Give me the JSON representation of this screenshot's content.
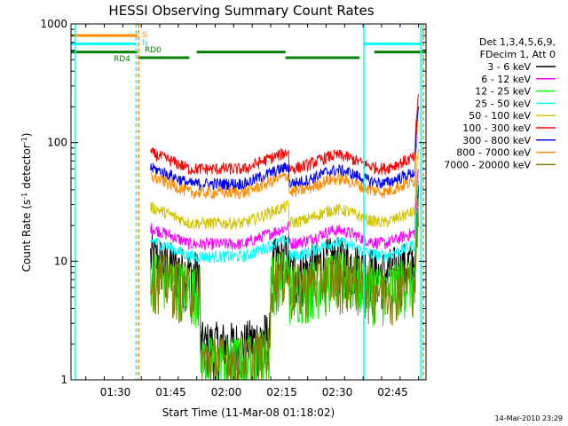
{
  "chart_data": {
    "type": "line",
    "title": "HESSI Observing Summary Count Rates",
    "xlabel": "Start Time (11-Mar-08 01:18:02)",
    "ylabel_main": "Count Rate (s",
    "ylabel_sup1": "-1",
    "ylabel_mid": " detector",
    "ylabel_sup2": "-1",
    "ylabel_end": ")",
    "timestamp": "14-Mar-2010 23:29",
    "y_scale": "log",
    "ylim": [
      1,
      1000
    ],
    "xlim_minutes": [
      1278,
      1374
    ],
    "x_ticks": [
      {
        "t": 1290,
        "label": "01:30"
      },
      {
        "t": 1305,
        "label": "01:45"
      },
      {
        "t": 1320,
        "label": "02:00"
      },
      {
        "t": 1335,
        "label": "02:15"
      },
      {
        "t": 1350,
        "label": "02:30"
      },
      {
        "t": 1365,
        "label": "02:45"
      }
    ],
    "y_ticks": [
      {
        "v": 1,
        "label": "1"
      },
      {
        "v": 10,
        "label": "10"
      },
      {
        "v": 100,
        "label": "100"
      },
      {
        "v": 1000,
        "label": "1000"
      }
    ],
    "legend_header": [
      "Det 1,3,4,5,6,9,",
      "FDecim 1, Att 0"
    ],
    "legend_position": "right",
    "series": [
      {
        "name": "3 - 6 keV",
        "color": "#000000",
        "level": 8
      },
      {
        "name": "6 - 12 keV",
        "color": "#ff00ff",
        "level": 14
      },
      {
        "name": "12 - 25 keV",
        "color": "#00ff00",
        "level": 6
      },
      {
        "name": "25 - 50 keV",
        "color": "#00ffff",
        "level": 11
      },
      {
        "name": "50 - 100 keV",
        "color": "#d4c400",
        "level": 21
      },
      {
        "name": "100 - 300 keV",
        "color": "#ff0000",
        "level": 60
      },
      {
        "name": "300 - 800 keV",
        "color": "#0000ff",
        "level": 45
      },
      {
        "name": "800 - 7000 keV",
        "color": "#ff8c00",
        "level": 38
      },
      {
        "name": "7000 - 20000 keV",
        "color": "#808000",
        "level": 6
      }
    ],
    "state_bands": [
      {
        "label": "S",
        "color": "#ff8c00"
      },
      {
        "label": "N",
        "color": "#00ffff"
      },
      {
        "label": "RD0",
        "color": "#008000"
      },
      {
        "label": "RD4",
        "color": "#008000"
      }
    ]
  }
}
